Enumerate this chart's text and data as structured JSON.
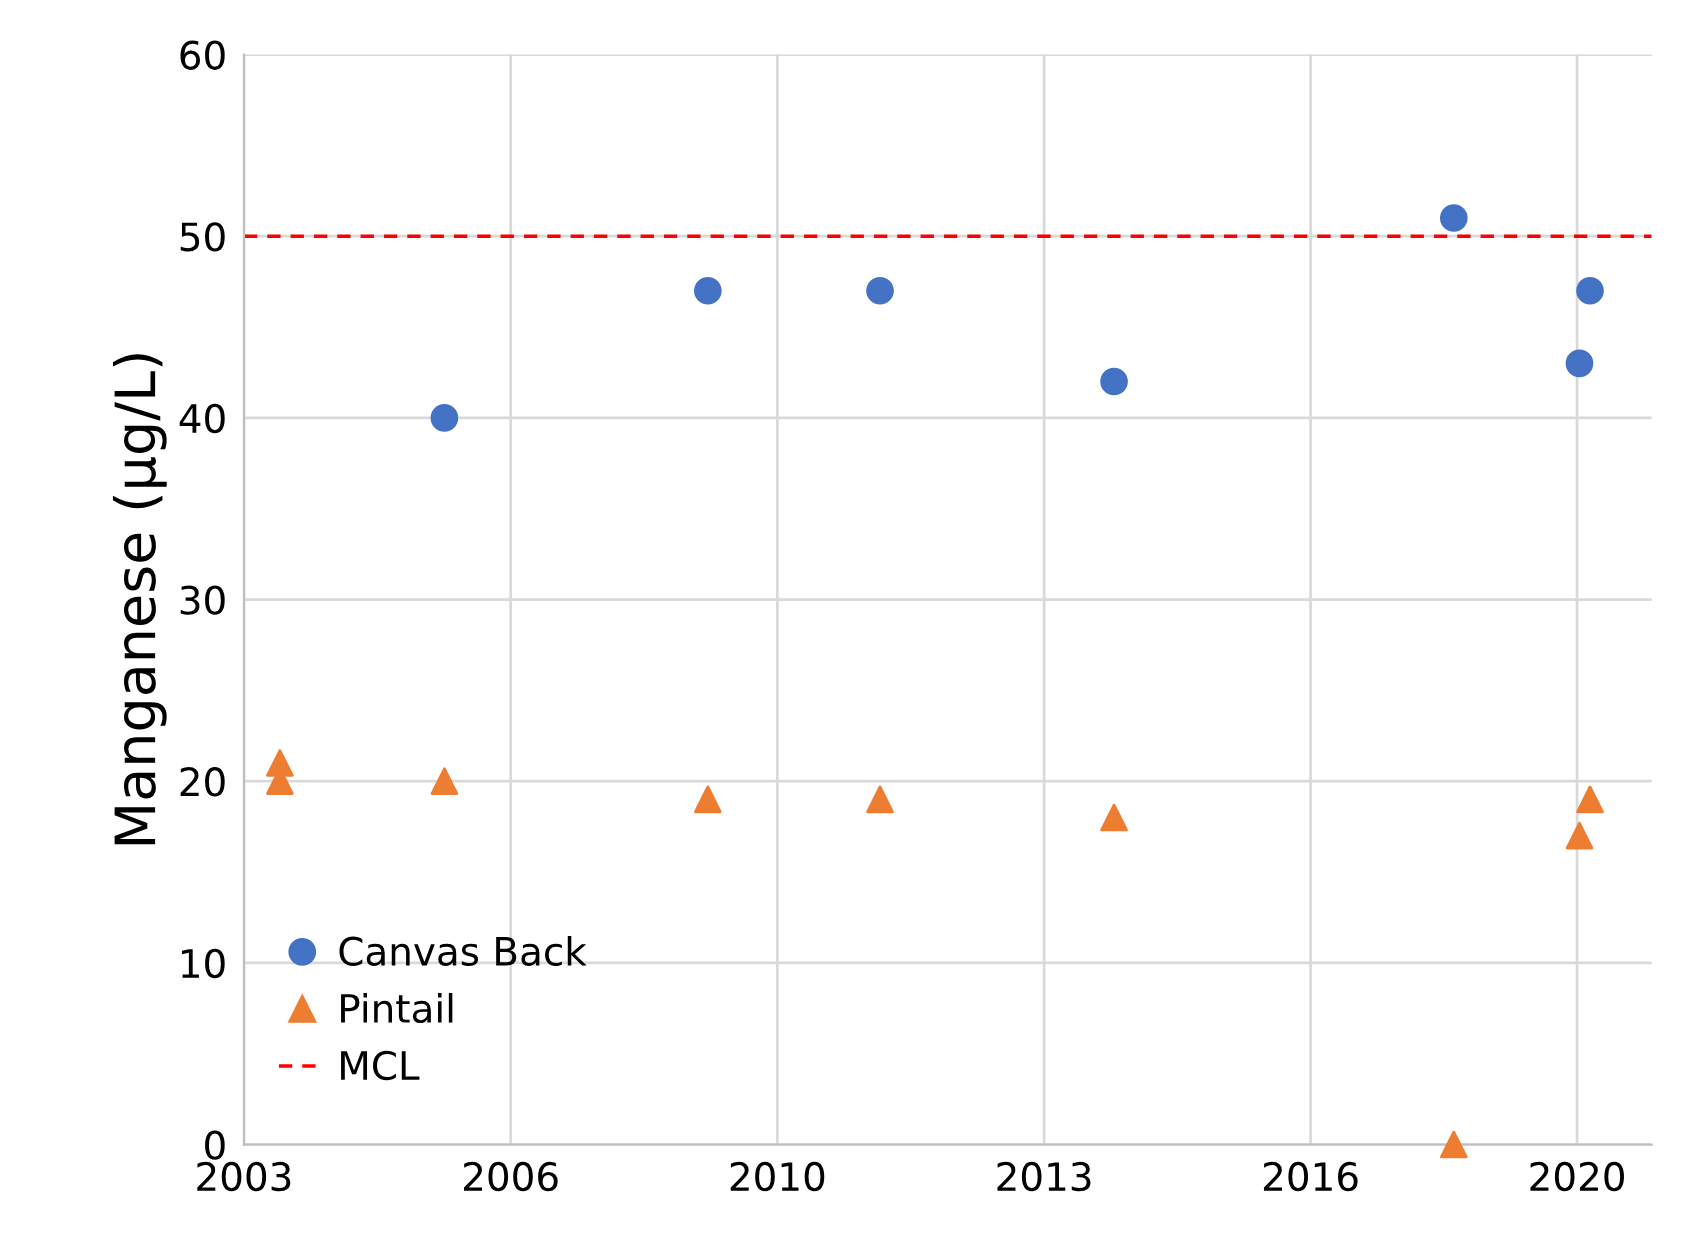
{
  "chart_data": {
    "type": "scatter",
    "ylabel": "Manganese (µg/L)",
    "xlim": [
      "2003-07-02",
      "2021-01-26"
    ],
    "ylim": [
      0,
      60
    ],
    "xticks": [
      {
        "value": "2003-07-02",
        "label": "2003"
      },
      {
        "value": "2006-10-30",
        "label": "2006"
      },
      {
        "value": "2010-02-27",
        "label": "2010"
      },
      {
        "value": "2013-06-27",
        "label": "2013"
      },
      {
        "value": "2016-10-24",
        "label": "2016"
      },
      {
        "value": "2020-02-21",
        "label": "2020"
      }
    ],
    "yticks": [
      0,
      10,
      20,
      30,
      40,
      50,
      60
    ],
    "grid": true,
    "legend": "bottom left",
    "series": [
      {
        "name": "Canvas Back",
        "color": "#4472c4",
        "marker": "circle",
        "x": [
          "2006-01-01",
          "2009-04-16",
          "2011-06-10",
          "2014-05-12",
          "2018-08-08",
          "2020-03-03",
          "2020-04-20"
        ],
        "values": [
          40,
          47,
          47,
          42,
          51,
          43,
          47
        ]
      },
      {
        "name": "Pintail",
        "color": "#ed7d31",
        "marker": "triangle",
        "x": [
          "2003-12-13",
          "2003-12-13",
          "2006-01-01",
          "2009-04-16",
          "2011-06-10",
          "2014-05-12",
          "2018-08-08",
          "2020-03-03",
          "2020-04-20"
        ],
        "values": [
          21,
          20,
          20,
          19,
          19,
          18,
          0,
          17,
          19
        ]
      }
    ],
    "ref_lines": [
      {
        "axis": "y",
        "value": 50,
        "label": "MCL",
        "color": "#ff0000",
        "line_style": "dashed"
      }
    ]
  }
}
